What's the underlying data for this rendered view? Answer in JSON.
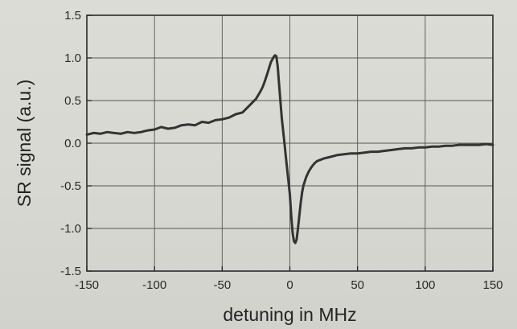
{
  "chart_data": {
    "type": "line",
    "title": "",
    "xlabel": "detuning in MHz",
    "ylabel": "SR signal (a.u.)",
    "xlim": [
      -150,
      150
    ],
    "ylim": [
      -1.5,
      1.5
    ],
    "grid": true,
    "x_ticks": [
      -150,
      -100,
      -50,
      0,
      50,
      100,
      150
    ],
    "y_ticks": [
      -1.5,
      -1.0,
      -0.5,
      0.0,
      0.5,
      1.0,
      1.5
    ],
    "x_tick_labels": [
      "-150",
      "-100",
      "-50",
      "0",
      "50",
      "100",
      "150"
    ],
    "y_tick_labels": [
      "-1.5",
      "-1.0",
      "-0.5",
      "0.0",
      "0.5",
      "1.0",
      "1.5"
    ],
    "series": [
      {
        "x": [
          -150,
          -145,
          -140,
          -135,
          -130,
          -125,
          -120,
          -115,
          -110,
          -105,
          -100,
          -95,
          -90,
          -85,
          -80,
          -75,
          -70,
          -65,
          -60,
          -55,
          -50,
          -45,
          -40,
          -35,
          -30,
          -25,
          -22,
          -20,
          -18,
          -16,
          -14,
          -12,
          -11,
          -10,
          -9,
          -8,
          -7,
          -6,
          -5,
          -4,
          -3,
          -2,
          -1,
          0,
          1,
          2,
          3,
          4,
          5,
          6,
          7,
          8,
          9,
          10,
          12,
          14,
          16,
          18,
          20,
          25,
          30,
          35,
          40,
          45,
          50,
          55,
          60,
          65,
          70,
          75,
          80,
          85,
          90,
          95,
          100,
          105,
          110,
          115,
          120,
          125,
          130,
          135,
          140,
          145,
          150
        ],
        "y": [
          0.1,
          0.12,
          0.11,
          0.13,
          0.12,
          0.11,
          0.13,
          0.12,
          0.13,
          0.15,
          0.16,
          0.19,
          0.17,
          0.18,
          0.21,
          0.22,
          0.21,
          0.25,
          0.24,
          0.27,
          0.28,
          0.3,
          0.34,
          0.36,
          0.44,
          0.52,
          0.6,
          0.66,
          0.75,
          0.85,
          0.95,
          1.01,
          1.03,
          1.02,
          0.9,
          0.7,
          0.5,
          0.3,
          0.15,
          0.0,
          -0.15,
          -0.3,
          -0.45,
          -0.6,
          -0.85,
          -1.05,
          -1.15,
          -1.17,
          -1.13,
          -1.0,
          -0.85,
          -0.7,
          -0.58,
          -0.5,
          -0.4,
          -0.33,
          -0.28,
          -0.24,
          -0.21,
          -0.18,
          -0.16,
          -0.14,
          -0.13,
          -0.12,
          -0.12,
          -0.11,
          -0.1,
          -0.1,
          -0.09,
          -0.08,
          -0.07,
          -0.06,
          -0.06,
          -0.05,
          -0.05,
          -0.04,
          -0.04,
          -0.03,
          -0.03,
          -0.02,
          -0.02,
          -0.02,
          -0.02,
          -0.01,
          -0.02
        ]
      }
    ],
    "colors": {
      "line": "#333333",
      "axes": "#2a2a2a",
      "grid": "#555555"
    }
  }
}
